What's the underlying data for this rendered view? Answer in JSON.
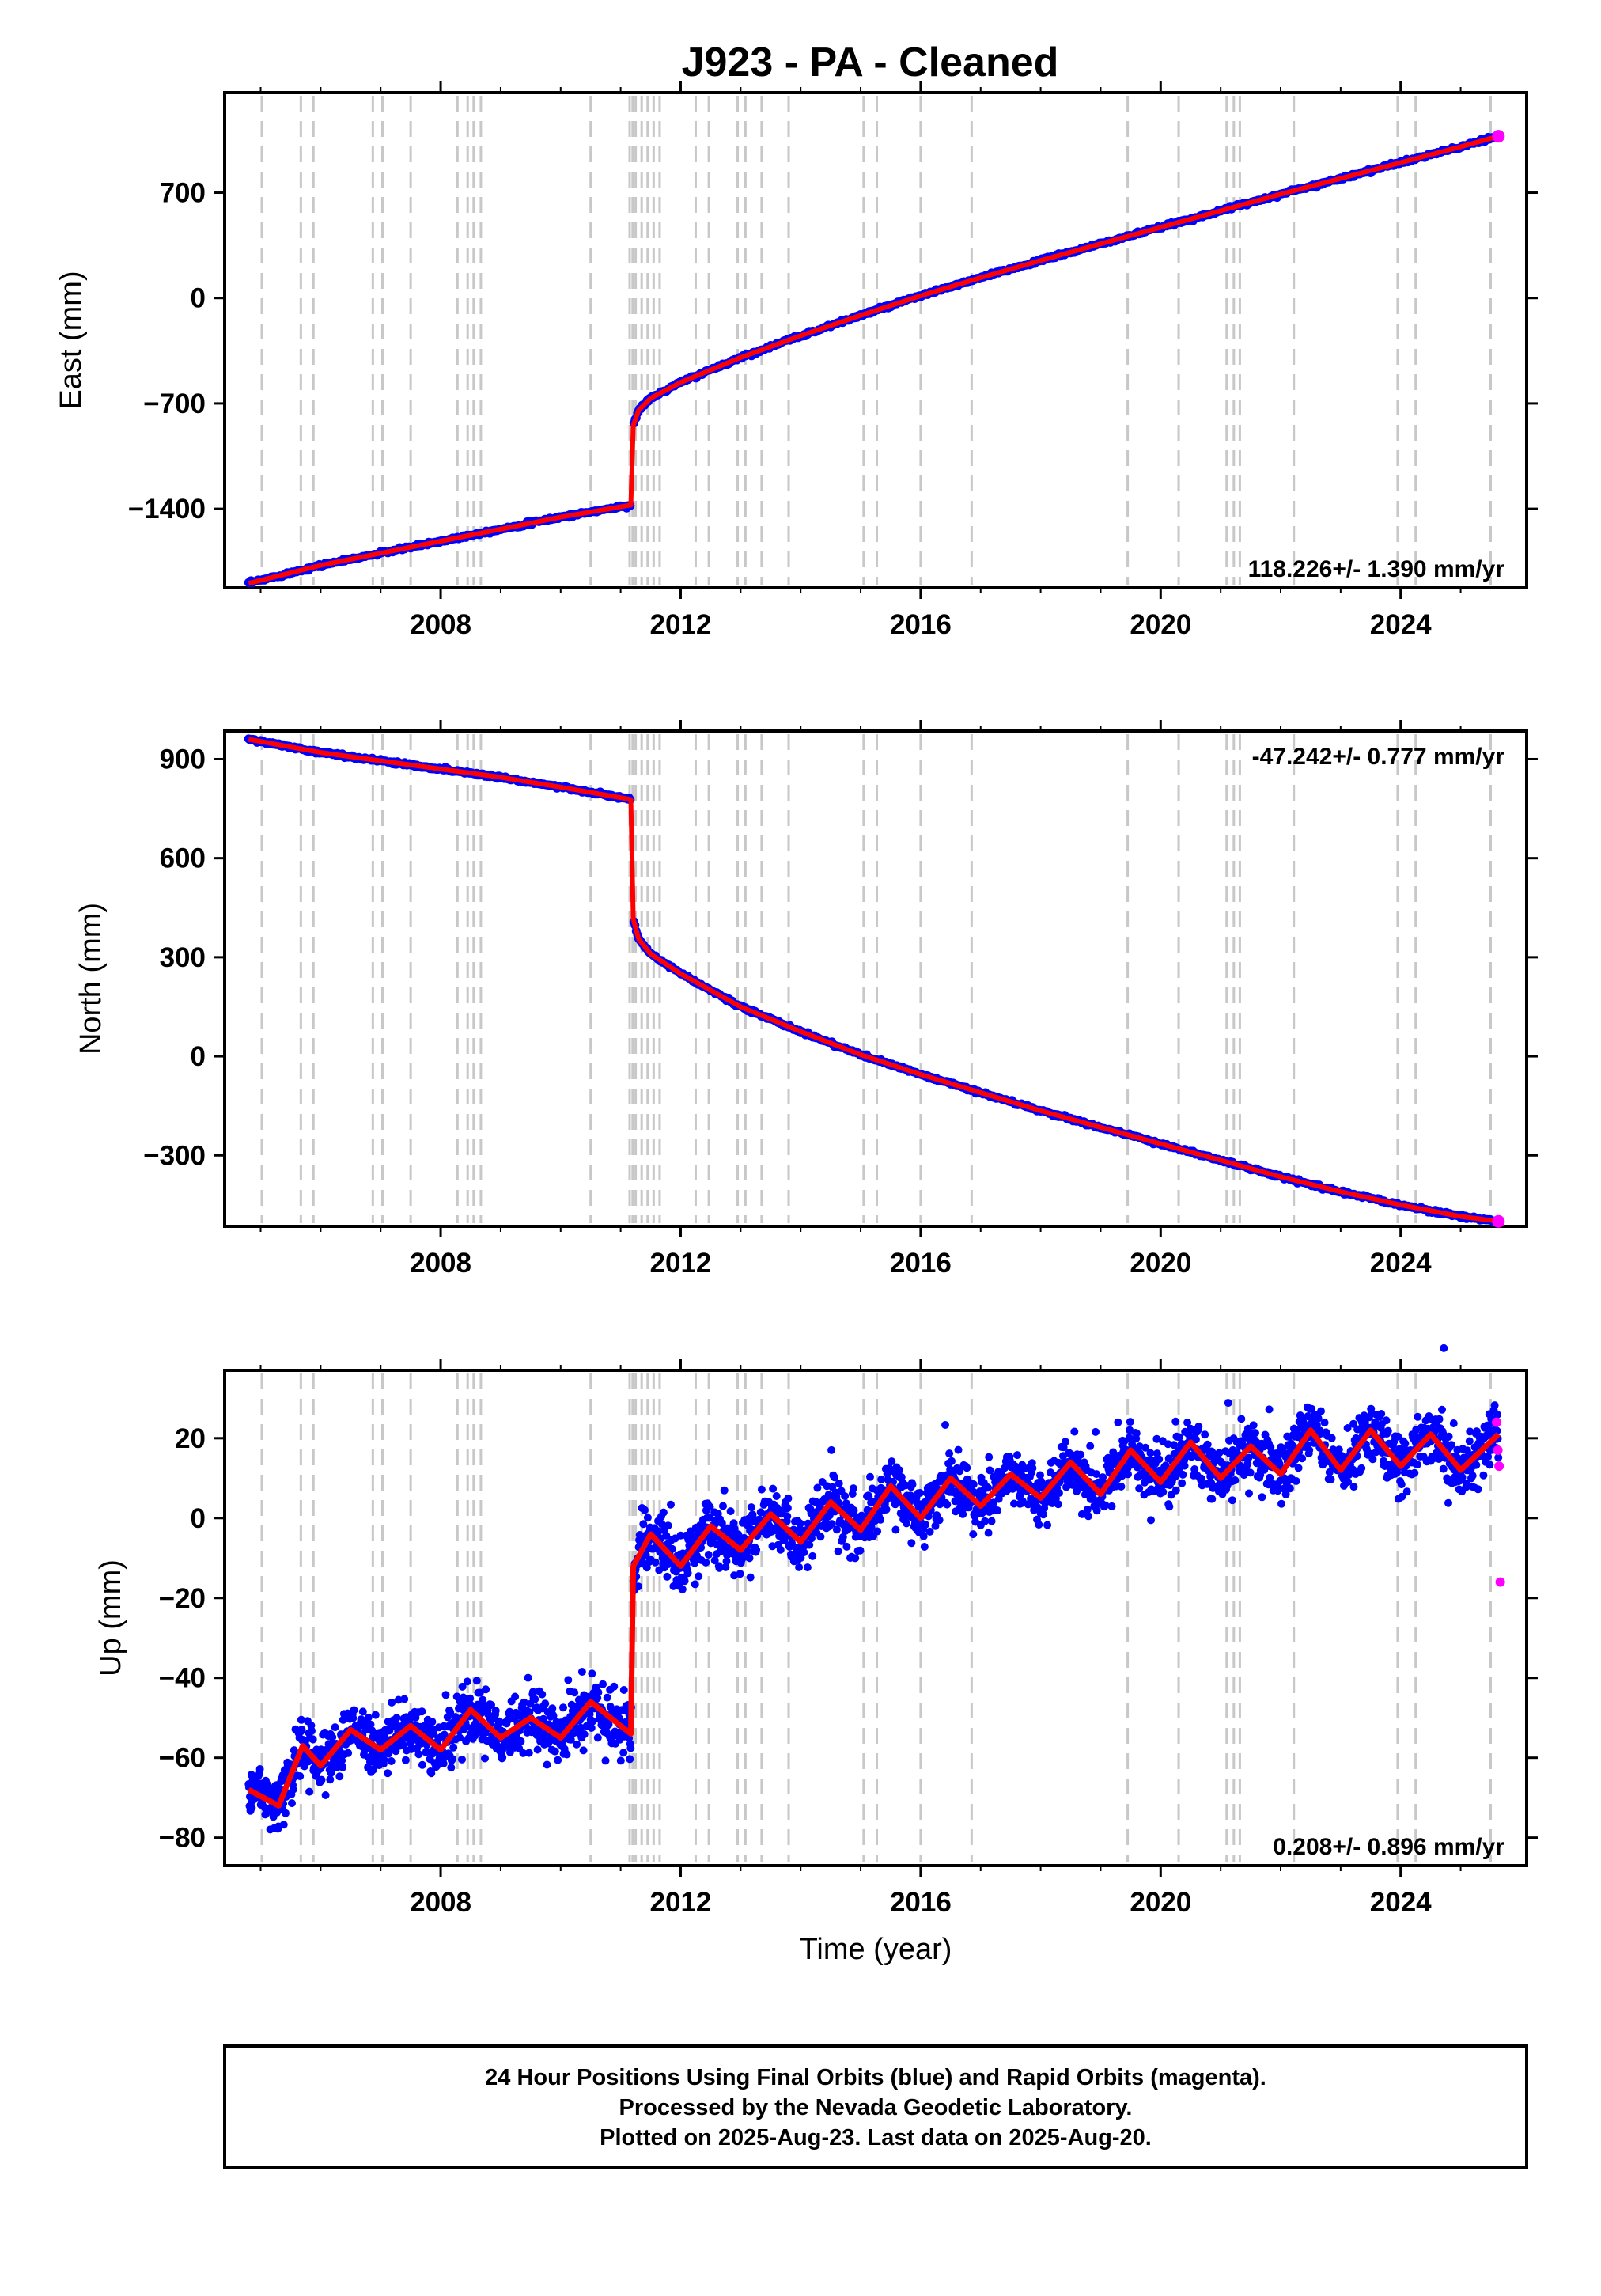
{
  "chart_data": {
    "type": "scatter",
    "title": "J923  - PA - Cleaned",
    "xlabel": "Time (year)",
    "xlim": [
      2004.4,
      2026.1
    ],
    "xticks": [
      2008,
      2012,
      2016,
      2020,
      2024
    ],
    "xtick_labels": [
      "2008",
      "2012",
      "2016",
      "2020",
      "2024"
    ],
    "step_epoch": 2011.19,
    "legend_colors": {
      "final_orbits": "#0000ff",
      "rapid_orbits": "#ff00ff",
      "model": "#ff0000",
      "events": "#c8c8c8"
    },
    "event_lines": [
      2005.02,
      2005.67,
      2005.88,
      2006.87,
      2007.03,
      2007.5,
      2008.28,
      2008.45,
      2008.55,
      2008.67,
      2010.5,
      2011.15,
      2011.2,
      2011.25,
      2011.35,
      2011.45,
      2011.55,
      2011.65,
      2012.25,
      2012.47,
      2012.95,
      2013.08,
      2013.35,
      2013.8,
      2015.05,
      2015.27,
      2016.0,
      2016.85,
      2019.45,
      2020.3,
      2021.1,
      2021.22,
      2021.32,
      2022.22,
      2023.95,
      2024.25,
      2025.5
    ],
    "panels": [
      {
        "component": "East",
        "ylabel": "East (mm)",
        "ylim": [
          -1925,
          1365
        ],
        "yticks": [
          -1400,
          -700,
          0,
          700
        ],
        "ytick_labels": [
          "−1400",
          "−700",
          "0",
          "700"
        ],
        "rate_text": "118.226+/- 1.390 mm/yr",
        "rate_position": "bottom-right",
        "series": [
          {
            "x": [
              2004.8,
              2006.0,
              2007.0,
              2008.0,
              2009.0,
              2010.0,
              2011.17,
              2011.21,
              2011.3,
              2011.5,
              2012.0,
              2013.0,
              2014.0,
              2015.0,
              2016.0,
              2017.0,
              2018.0,
              2019.0,
              2020.0,
              2021.0,
              2022.0,
              2023.0,
              2024.0,
              2025.0,
              2025.63
            ],
            "y": [
              -1895,
              -1775,
              -1695,
              -1615,
              -1535,
              -1455,
              -1375,
              -845,
              -745,
              -665,
              -560,
              -395,
              -250,
              -115,
              15,
              135,
              250,
              360,
              470,
              580,
              690,
              795,
              900,
              1005,
              1075
            ]
          }
        ]
      },
      {
        "component": "North",
        "ylabel": "North (mm)",
        "ylim": [
          -515,
          985
        ],
        "yticks": [
          -300,
          0,
          300,
          600,
          900
        ],
        "ytick_labels": [
          "−300",
          "0",
          "300",
          "600",
          "900"
        ],
        "rate_text": "-47.242+/- 0.777 mm/yr",
        "rate_position": "top-right",
        "series": [
          {
            "x": [
              2004.8,
              2006.0,
              2007.0,
              2008.0,
              2009.0,
              2010.0,
              2011.17,
              2011.21,
              2011.3,
              2011.5,
              2012.0,
              2013.0,
              2014.0,
              2015.0,
              2016.0,
              2017.0,
              2018.0,
              2019.0,
              2020.0,
              2021.0,
              2022.0,
              2023.0,
              2024.0,
              2025.0,
              2025.63
            ],
            "y": [
              960,
              920,
              895,
              870,
              845,
              815,
              778,
              415,
              355,
              310,
              250,
              150,
              75,
              5,
              -55,
              -110,
              -165,
              -215,
              -265,
              -315,
              -365,
              -410,
              -450,
              -485,
              -500
            ]
          }
        ]
      },
      {
        "component": "Up",
        "ylabel": "Up (mm)",
        "ylim": [
          -87,
          37
        ],
        "yticks": [
          -80,
          -60,
          -40,
          -20,
          0,
          20
        ],
        "ytick_labels": [
          "−80",
          "−60",
          "−40",
          "−20",
          "0",
          "20"
        ],
        "rate_text": "0.208+/- 0.896 mm/yr",
        "rate_position": "bottom-right",
        "series": [
          {
            "x": [
              2004.8,
              2005.3,
              2005.7,
              2006.0,
              2006.5,
              2007.0,
              2007.5,
              2008.0,
              2008.5,
              2009.0,
              2009.5,
              2010.0,
              2010.5,
              2011.0,
              2011.17,
              2011.21,
              2011.5,
              2012.0,
              2012.5,
              2013.0,
              2013.5,
              2014.0,
              2014.5,
              2015.0,
              2015.5,
              2016.0,
              2016.5,
              2017.0,
              2017.5,
              2018.0,
              2018.5,
              2019.0,
              2019.5,
              2020.0,
              2020.5,
              2021.0,
              2021.5,
              2022.0,
              2022.5,
              2023.0,
              2023.5,
              2024.0,
              2024.5,
              2025.0,
              2025.63
            ],
            "y": [
              -68,
              -72,
              -57,
              -62,
              -53,
              -58,
              -52,
              -58,
              -48,
              -55,
              -50,
              -55,
              -46,
              -52,
              -54,
              -12,
              -4,
              -12,
              -2,
              -8,
              1,
              -6,
              4,
              -3,
              8,
              0,
              10,
              3,
              11,
              5,
              14,
              6,
              17,
              9,
              19,
              10,
              18,
              11,
              22,
              12,
              22,
              13,
              21,
              12,
              21
            ]
          },
          {
            "x": [
              2025.6,
              2025.62,
              2025.64,
              2025.66
            ],
            "y": [
              24,
              17,
              13,
              -16
            ]
          }
        ]
      }
    ]
  },
  "footer": {
    "line1": "24 Hour Positions Using Final Orbits (blue) and Rapid Orbits (magenta).",
    "line2": "Processed by the Nevada Geodetic Laboratory.",
    "line3": "Plotted on 2025-Aug-23. Last data on 2025-Aug-20."
  }
}
